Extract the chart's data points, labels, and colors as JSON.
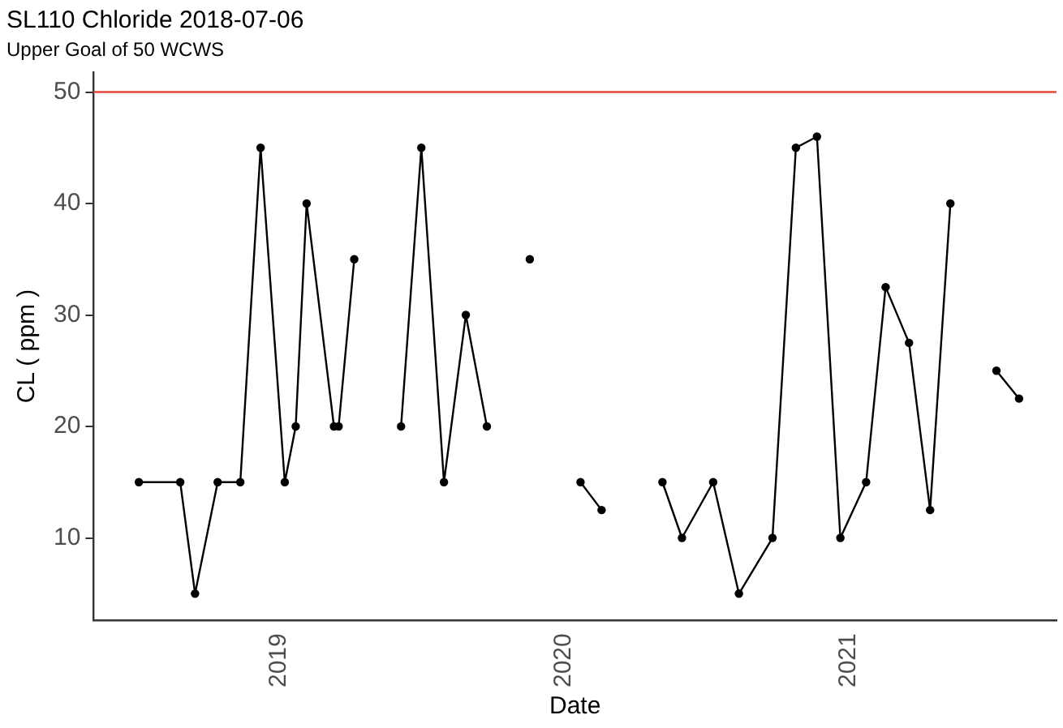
{
  "chart_data": {
    "type": "line",
    "title": "SL110 Chloride 2018-07-06",
    "subtitle": "Upper Goal of 50 WCWS",
    "xlabel": "Date",
    "ylabel": "CL ( ppm )",
    "series": [
      {
        "color": "#000000",
        "x": [
          "2018-07-06",
          "2018-08-28",
          "2018-09-16",
          "2018-10-15",
          "2018-11-13",
          "2018-12-09",
          "2019-01-09",
          "2019-01-23",
          "2019-02-06",
          "2019-03-13",
          "2019-03-19",
          "2019-04-08"
        ],
        "values": [
          15,
          15,
          5,
          15,
          15,
          45,
          15,
          20,
          40,
          20,
          20,
          35
        ]
      },
      {
        "color": "#000000",
        "x": [
          "2019-06-07",
          "2019-07-03",
          "2019-08-01",
          "2019-08-29",
          "2019-09-25"
        ],
        "values": [
          20,
          45,
          15,
          30,
          20
        ]
      },
      {
        "color": "#000000",
        "x": [
          "2019-11-19"
        ],
        "values": [
          35
        ]
      },
      {
        "color": "#000000",
        "x": [
          "2020-01-23",
          "2020-02-19"
        ],
        "values": [
          15,
          12.5
        ]
      },
      {
        "color": "#000000",
        "x": [
          "2020-05-07",
          "2020-06-01",
          "2020-07-11",
          "2020-08-13",
          "2020-09-25",
          "2020-10-25",
          "2020-11-21",
          "2020-12-21",
          "2021-01-23",
          "2021-02-17",
          "2021-03-19",
          "2021-04-15",
          "2021-05-11"
        ],
        "values": [
          15,
          10,
          15,
          5,
          10,
          45,
          46,
          10,
          15,
          32.5,
          27.5,
          12.5,
          40
        ]
      },
      {
        "color": "#000000",
        "x": [
          "2021-07-09",
          "2021-08-07"
        ],
        "values": [
          25,
          22.5
        ]
      }
    ],
    "xlim": [
      "2018-05-09",
      "2021-09-24"
    ],
    "xticks": [
      {
        "value": "2019-01-01",
        "label": "2019"
      },
      {
        "value": "2020-01-01",
        "label": "2020"
      },
      {
        "value": "2021-01-01",
        "label": "2021"
      }
    ],
    "ylim": [
      2.6,
      51.8
    ],
    "yticks": [
      10,
      20,
      30,
      40,
      50
    ],
    "ref_lines": [
      {
        "axis": "y",
        "value": 50,
        "color": "#e8463a"
      }
    ],
    "grid": false,
    "legend": false,
    "marker": "circle",
    "line_style": "solid"
  }
}
